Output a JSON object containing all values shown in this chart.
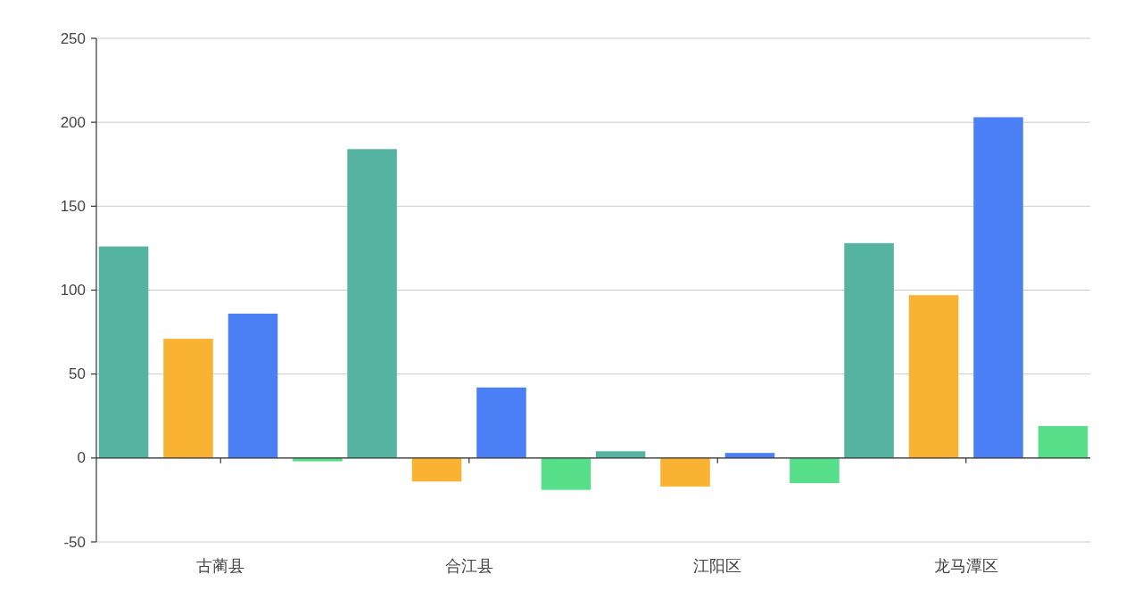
{
  "chart_data": {
    "type": "bar",
    "categories": [
      "古蔺县",
      "合江县",
      "江阳区",
      "龙马潭区"
    ],
    "series": [
      {
        "color": "#54b4a1",
        "values": [
          126,
          184,
          4,
          128
        ]
      },
      {
        "color": "#fab232",
        "values": [
          71,
          -14,
          -17,
          97
        ]
      },
      {
        "color": "#4b7ff6",
        "values": [
          86,
          42,
          3,
          203
        ]
      },
      {
        "color": "#56de88",
        "values": [
          -2,
          -19,
          -15,
          19
        ]
      }
    ],
    "ylim": [
      -50,
      250
    ],
    "yticks": [
      -50,
      0,
      50,
      100,
      150,
      200,
      250
    ],
    "grid": "y"
  }
}
